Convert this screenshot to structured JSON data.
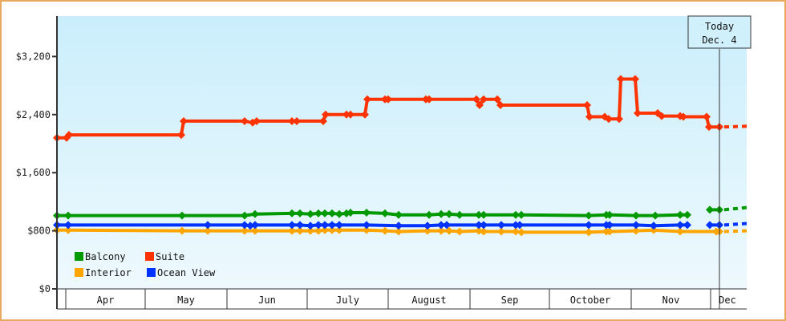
{
  "chart_data": {
    "type": "line",
    "title": "",
    "xlabel": "",
    "ylabel": "",
    "ylim": [
      0,
      3900
    ],
    "y_ticks": [
      {
        "value": 0,
        "label": "$0"
      },
      {
        "value": 800,
        "label": "$800"
      },
      {
        "value": 1600,
        "label": "$1,600"
      },
      {
        "value": 2400,
        "label": "$2,400"
      },
      {
        "value": 3200,
        "label": "$3,200"
      }
    ],
    "x_months": [
      {
        "label": "Apr",
        "x0": 82,
        "x1": 181
      },
      {
        "label": "May",
        "x0": 181,
        "x1": 283
      },
      {
        "label": "Jun",
        "x0": 283,
        "x1": 383
      },
      {
        "label": "July",
        "x0": 383,
        "x1": 484
      },
      {
        "label": "August",
        "x0": 484,
        "x1": 586
      },
      {
        "label": "Sep",
        "x0": 586,
        "x1": 685
      },
      {
        "label": "October",
        "x0": 685,
        "x1": 787
      },
      {
        "label": "Nov",
        "x0": 787,
        "x1": 886
      },
      {
        "label": "Dec",
        "x0": 886,
        "x1": 931
      }
    ],
    "today_marker": {
      "line1": "Today",
      "line2": "Dec. 4",
      "x": 897
    },
    "grid": false,
    "legend_position": "lower-left",
    "series": [
      {
        "name": "Suite",
        "color": "#ff3300",
        "points": [
          [
            71,
            2080
          ],
          [
            83,
            2080
          ],
          [
            86,
            2120
          ],
          [
            226,
            2120
          ],
          [
            229,
            2310
          ],
          [
            305,
            2310
          ],
          [
            315,
            2290
          ],
          [
            320,
            2310
          ],
          [
            364,
            2310
          ],
          [
            370,
            2310
          ],
          [
            403,
            2310
          ],
          [
            406,
            2400
          ],
          [
            432,
            2400
          ],
          [
            437,
            2400
          ],
          [
            455,
            2400
          ],
          [
            458,
            2610
          ],
          [
            480,
            2610
          ],
          [
            484,
            2610
          ],
          [
            531,
            2610
          ],
          [
            535,
            2610
          ],
          [
            594,
            2610
          ],
          [
            598,
            2530
          ],
          [
            603,
            2610
          ],
          [
            620,
            2610
          ],
          [
            624,
            2530
          ],
          [
            732,
            2530
          ],
          [
            735,
            2370
          ],
          [
            754,
            2370
          ],
          [
            759,
            2340
          ],
          [
            772,
            2340
          ],
          [
            774,
            2890
          ],
          [
            792,
            2890
          ],
          [
            795,
            2420
          ],
          [
            820,
            2420
          ],
          [
            825,
            2380
          ],
          [
            848,
            2380
          ],
          [
            852,
            2370
          ],
          [
            881,
            2370
          ],
          [
            884,
            2230
          ],
          [
            897,
            2230
          ]
        ],
        "forecast": [
          [
            897,
            2230
          ],
          [
            931,
            2240
          ]
        ]
      },
      {
        "name": "Balcony",
        "color": "#009900",
        "points": [
          [
            71,
            1010
          ],
          [
            85,
            1010
          ],
          [
            227,
            1010
          ],
          [
            305,
            1010
          ],
          [
            318,
            1030
          ],
          [
            364,
            1040
          ],
          [
            374,
            1040
          ],
          [
            387,
            1030
          ],
          [
            397,
            1040
          ],
          [
            405,
            1040
          ],
          [
            414,
            1040
          ],
          [
            423,
            1030
          ],
          [
            432,
            1040
          ],
          [
            437,
            1050
          ],
          [
            457,
            1050
          ],
          [
            480,
            1040
          ],
          [
            497,
            1020
          ],
          [
            535,
            1020
          ],
          [
            550,
            1030
          ],
          [
            560,
            1030
          ],
          [
            573,
            1020
          ],
          [
            597,
            1020
          ],
          [
            603,
            1020
          ],
          [
            643,
            1020
          ],
          [
            650,
            1020
          ],
          [
            734,
            1010
          ],
          [
            756,
            1020
          ],
          [
            760,
            1020
          ],
          [
            793,
            1010
          ],
          [
            817,
            1010
          ],
          [
            848,
            1020
          ],
          [
            857,
            1020
          ]
        ],
        "gap_points": [
          [
            885,
            1090
          ],
          [
            897,
            1090
          ]
        ],
        "forecast": [
          [
            897,
            1090
          ],
          [
            931,
            1120
          ]
        ]
      },
      {
        "name": "Ocean View",
        "color": "#0033ff",
        "points": [
          [
            71,
            880
          ],
          [
            85,
            880
          ],
          [
            259,
            880
          ],
          [
            305,
            880
          ],
          [
            312,
            870
          ],
          [
            318,
            880
          ],
          [
            364,
            880
          ],
          [
            374,
            880
          ],
          [
            387,
            870
          ],
          [
            397,
            880
          ],
          [
            405,
            880
          ],
          [
            414,
            880
          ],
          [
            423,
            880
          ],
          [
            457,
            880
          ],
          [
            497,
            870
          ],
          [
            533,
            870
          ],
          [
            550,
            880
          ],
          [
            557,
            880
          ],
          [
            597,
            880
          ],
          [
            603,
            880
          ],
          [
            625,
            880
          ],
          [
            643,
            880
          ],
          [
            648,
            880
          ],
          [
            734,
            880
          ],
          [
            756,
            880
          ],
          [
            760,
            880
          ],
          [
            793,
            880
          ],
          [
            815,
            870
          ],
          [
            848,
            880
          ],
          [
            857,
            880
          ]
        ],
        "gap_points": [
          [
            885,
            880
          ],
          [
            897,
            880
          ]
        ],
        "forecast": [
          [
            897,
            880
          ],
          [
            931,
            900
          ]
        ]
      },
      {
        "name": "Interior",
        "color": "#ffa500",
        "points": [
          [
            71,
            810
          ],
          [
            85,
            810
          ],
          [
            227,
            800
          ],
          [
            259,
            800
          ],
          [
            305,
            800
          ],
          [
            318,
            800
          ],
          [
            364,
            800
          ],
          [
            374,
            800
          ],
          [
            387,
            800
          ],
          [
            397,
            800
          ],
          [
            405,
            810
          ],
          [
            414,
            810
          ],
          [
            423,
            810
          ],
          [
            457,
            810
          ],
          [
            480,
            800
          ],
          [
            497,
            790
          ],
          [
            533,
            800
          ],
          [
            550,
            800
          ],
          [
            560,
            800
          ],
          [
            573,
            790
          ],
          [
            597,
            800
          ],
          [
            603,
            790
          ],
          [
            625,
            790
          ],
          [
            643,
            790
          ],
          [
            650,
            780
          ],
          [
            734,
            780
          ],
          [
            756,
            790
          ],
          [
            760,
            790
          ],
          [
            793,
            800
          ],
          [
            815,
            810
          ],
          [
            848,
            790
          ],
          [
            893,
            790
          ],
          [
            897,
            790
          ]
        ],
        "forecast": [
          [
            897,
            790
          ],
          [
            931,
            800
          ]
        ]
      }
    ]
  },
  "legend": {
    "items": [
      {
        "label": "Balcony",
        "color": "#009900"
      },
      {
        "label": "Suite",
        "color": "#ff3300"
      },
      {
        "label": "Interior",
        "color": "#ffa500"
      },
      {
        "label": "Ocean View",
        "color": "#0033ff"
      }
    ]
  }
}
